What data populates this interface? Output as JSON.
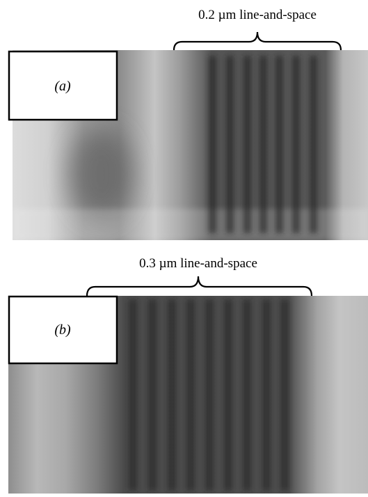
{
  "panels": [
    {
      "label": "(a)",
      "caption": "0.2 µm line-and-space"
    },
    {
      "label": "(b)",
      "caption": "0.3 µm line-and-space"
    }
  ]
}
